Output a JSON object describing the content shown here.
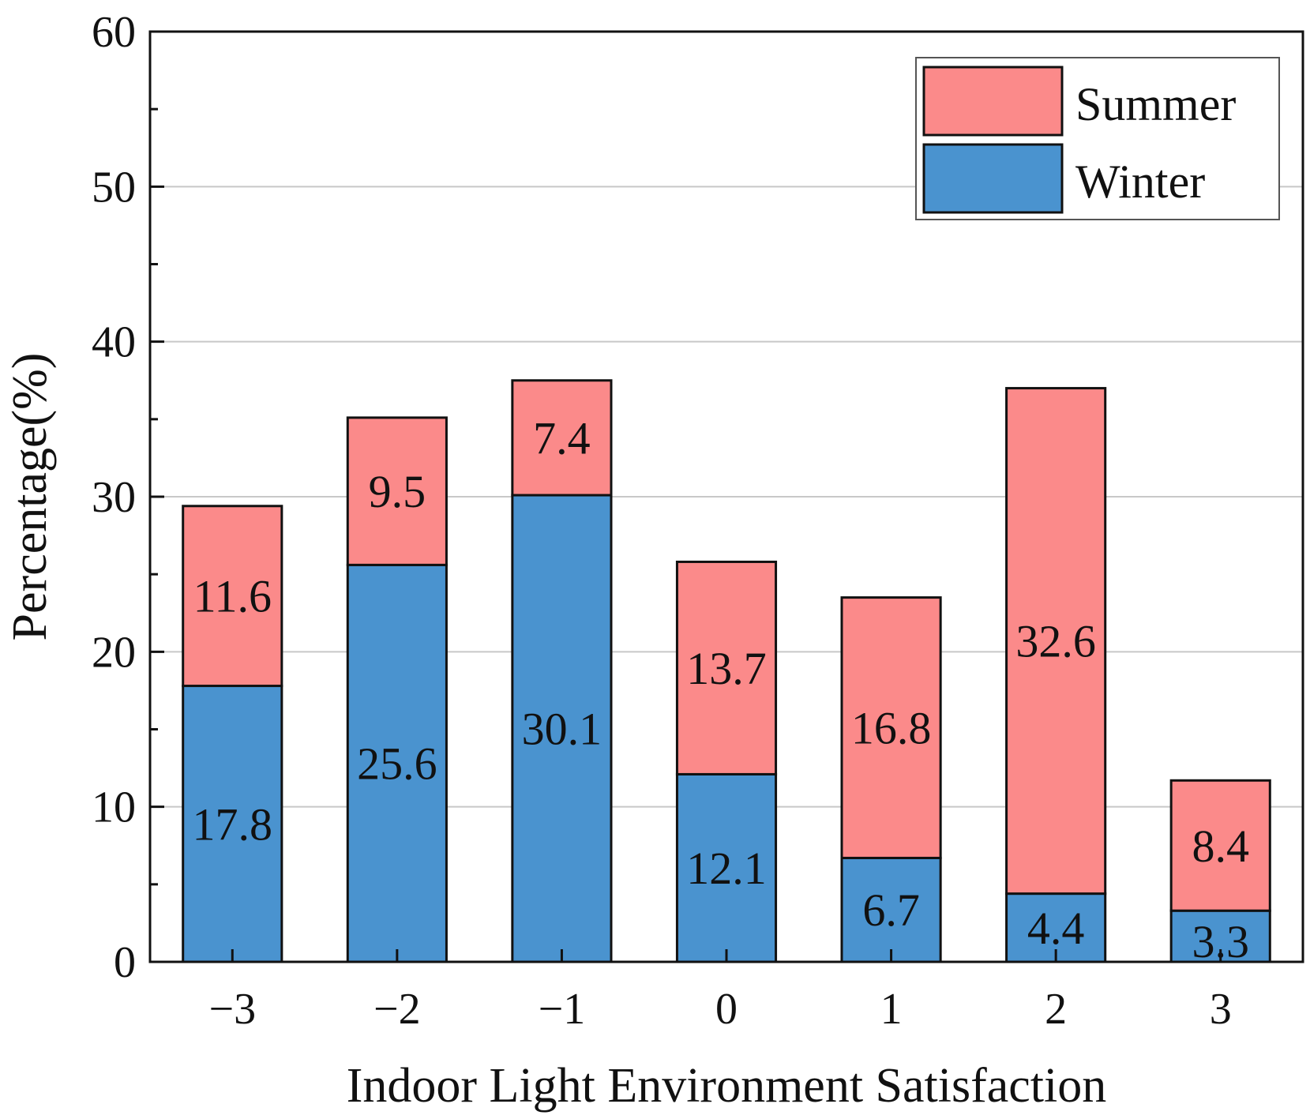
{
  "chart_data": {
    "type": "bar",
    "stacked": true,
    "title": "",
    "xlabel": "Indoor Light Environment Satisfaction",
    "ylabel": "Percentage(%)",
    "ylim": [
      0,
      60
    ],
    "yticks": [
      "0",
      "10",
      "20",
      "30",
      "40",
      "50",
      "60"
    ],
    "categories": [
      "−3",
      "−2",
      "−1",
      "0",
      "1",
      "2",
      "3"
    ],
    "grid": true,
    "legend_position": "top-right",
    "series": [
      {
        "name": "Winter",
        "color": "#4a93cf",
        "values": [
          17.8,
          25.6,
          30.1,
          12.1,
          6.7,
          4.4,
          3.3
        ]
      },
      {
        "name": "Summer",
        "color": "#fb8a8a",
        "values": [
          11.6,
          9.5,
          7.4,
          13.7,
          16.8,
          32.6,
          8.4
        ]
      }
    ],
    "data_labels": {
      "Winter": [
        "17.8",
        "25.6",
        "30.1",
        "12.1",
        "6.7",
        "4.4",
        "3.3"
      ],
      "Summer": [
        "11.6",
        "9.5",
        "7.4",
        "13.7",
        "16.8",
        "32.6",
        "8.4"
      ]
    },
    "legend": [
      "Summer",
      "Winter"
    ]
  }
}
